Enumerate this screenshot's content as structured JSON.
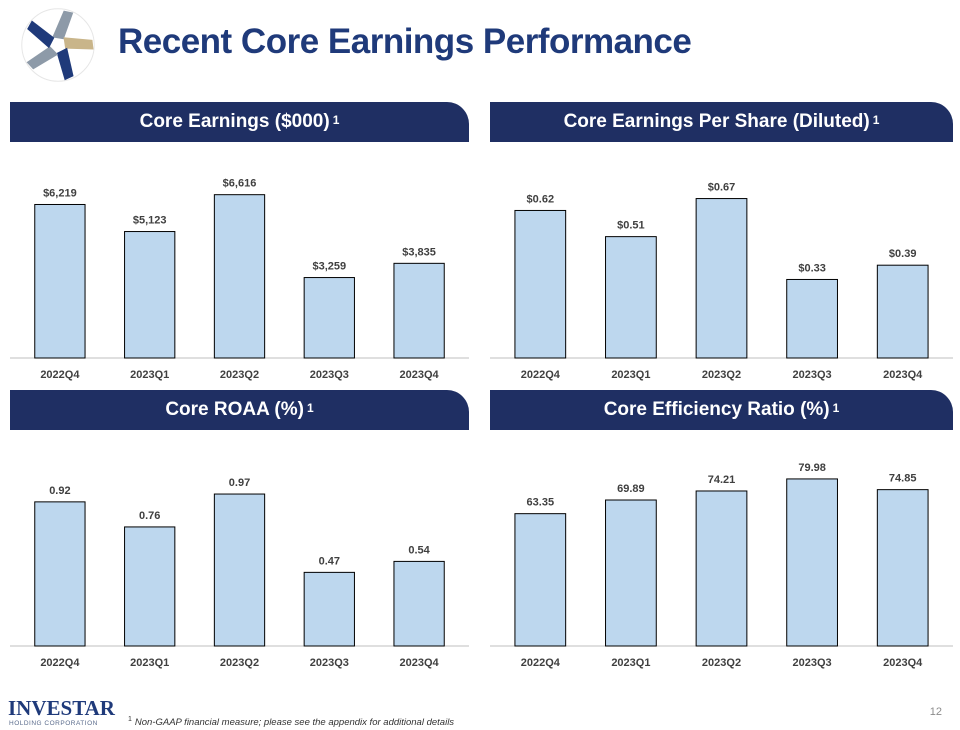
{
  "title": "Recent Core Earnings Performance",
  "footnote": {
    "marker": "1",
    "text": "Non-GAAP financial measure; please see the appendix for additional details"
  },
  "page_number": "12",
  "footer_logo": {
    "name": "INVESTAR",
    "tagline": "HOLDING CORPORATION"
  },
  "colors": {
    "header_bg": "#1f2f63",
    "title": "#1f3a7a",
    "bar_fill": "#bdd7ee",
    "bar_stroke": "#000000"
  },
  "panels": [
    {
      "title": "Core Earnings ($000)",
      "superscript": "1"
    },
    {
      "title": "Core Earnings Per Share (Diluted)",
      "superscript": "1"
    },
    {
      "title": "Core ROAA (%)",
      "superscript": "1"
    },
    {
      "title": "Core Efficiency Ratio (%)",
      "superscript": "1"
    }
  ],
  "chart_data": [
    {
      "type": "bar",
      "title": "Core Earnings ($000)",
      "categories": [
        "2022Q4",
        "2023Q1",
        "2023Q2",
        "2023Q3",
        "2023Q4"
      ],
      "values": [
        6219,
        5123,
        6616,
        3259,
        3835
      ],
      "labels": [
        "$6,219",
        "$5,123",
        "$6,616",
        "$3,259",
        "$3,835"
      ],
      "ylim": [
        0,
        7616
      ],
      "grid": false,
      "legend": "none"
    },
    {
      "type": "bar",
      "title": "Core Earnings Per Share (Diluted)",
      "categories": [
        "2022Q4",
        "2023Q1",
        "2023Q2",
        "2023Q3",
        "2023Q4"
      ],
      "values": [
        0.62,
        0.51,
        0.67,
        0.33,
        0.39
      ],
      "labels": [
        "$0.62",
        "$0.51",
        "$0.67",
        "$0.33",
        "$0.39"
      ],
      "ylim": [
        0,
        0.79
      ],
      "grid": false,
      "legend": "none"
    },
    {
      "type": "bar",
      "title": "Core ROAA (%)",
      "categories": [
        "2022Q4",
        "2023Q1",
        "2023Q2",
        "2023Q3",
        "2023Q4"
      ],
      "values": [
        0.92,
        0.76,
        0.97,
        0.47,
        0.54
      ],
      "labels": [
        "0.92",
        "0.76",
        "0.97",
        "0.47",
        "0.54"
      ],
      "ylim": [
        0,
        1.2
      ],
      "grid": false,
      "legend": "none"
    },
    {
      "type": "bar",
      "title": "Core Efficiency Ratio (%)",
      "categories": [
        "2022Q4",
        "2023Q1",
        "2023Q2",
        "2023Q3",
        "2023Q4"
      ],
      "values": [
        63.35,
        69.89,
        74.21,
        79.98,
        74.85
      ],
      "labels": [
        "63.35",
        "69.89",
        "74.21",
        "79.98",
        "74.85"
      ],
      "ylim": [
        0,
        90
      ],
      "grid": false,
      "legend": "none"
    }
  ]
}
